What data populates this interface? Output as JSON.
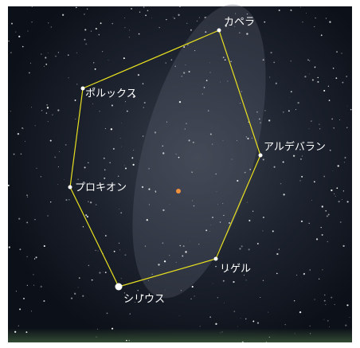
{
  "nodes": [
    {
      "label": "カペラ"
    },
    {
      "label": "ポルックス"
    },
    {
      "label": "プロキオン"
    },
    {
      "label": "シリウス"
    },
    {
      "label": "リゲル"
    },
    {
      "label": "アルデバラン"
    }
  ]
}
